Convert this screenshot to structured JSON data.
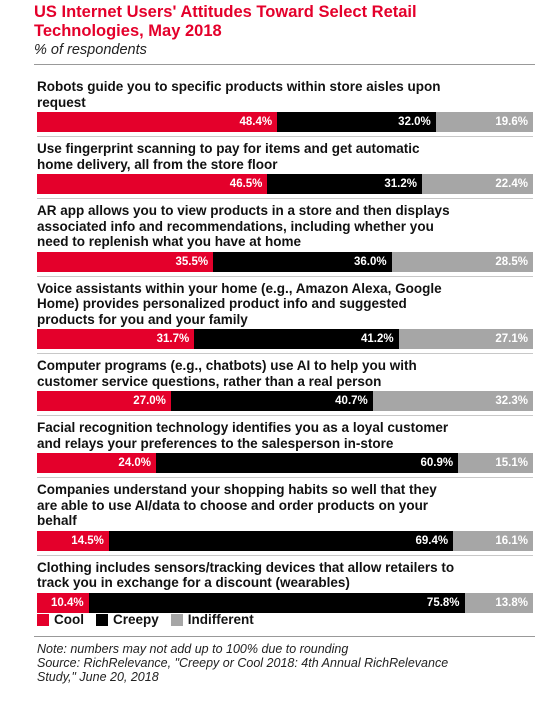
{
  "header": {
    "title_line1": "US Internet Users' Attitudes Toward Select Retail",
    "title_line2": "Technologies, May 2018",
    "subtitle": "% of respondents"
  },
  "legend": {
    "cool": "Cool",
    "creepy": "Creepy",
    "indifferent": "Indifferent"
  },
  "footer": {
    "note": "Note: numbers may not add up to 100% due to rounding",
    "source_line1": "Source: RichRelevance, \"Creepy or Cool 2018: 4th Annual RichRelevance",
    "source_line2": "Study,\" June 20, 2018"
  },
  "colors": {
    "cool": "#e4002b",
    "creepy": "#000000",
    "indifferent": "#a6a6a6"
  },
  "chart_data": {
    "type": "bar",
    "stacked": true,
    "orientation": "horizontal",
    "title": "US Internet Users' Attitudes Toward Select Retail Technologies, May 2018",
    "subtitle": "% of respondents",
    "categories": [
      [
        "Robots guide you to specific products within store aisles upon",
        "request"
      ],
      [
        "Use fingerprint scanning to pay for items and get automatic",
        "home delivery, all from the store floor"
      ],
      [
        "AR app allows you to view products in a store and then displays",
        "associated info and recommendations, including whether you",
        "need to replenish what you have at home"
      ],
      [
        "Voice assistants within your home (e.g., Amazon Alexa, Google",
        "Home) provides personalized product info and suggested",
        "products for you and your family"
      ],
      [
        "Computer programs (e.g., chatbots) use AI to help you with",
        "customer service questions, rather than a real person"
      ],
      [
        "Facial recognition technology identifies you as a loyal customer",
        "and relays your preferences to the salesperson in-store"
      ],
      [
        "Companies understand your shopping habits so well that they",
        "are able to use AI/data to choose and order products on your",
        "behalf"
      ],
      [
        "Clothing includes sensors/tracking devices that allow retailers to",
        "track you in exchange for a discount (wearables)"
      ]
    ],
    "series": [
      {
        "name": "Cool",
        "values": [
          48.4,
          46.5,
          35.5,
          31.7,
          27.0,
          24.0,
          14.5,
          10.4
        ],
        "labels": [
          "48.4%",
          "46.5%",
          "35.5%",
          "31.7%",
          "27.0%",
          "24.0%",
          "14.5%",
          "10.4%"
        ]
      },
      {
        "name": "Creepy",
        "values": [
          32.0,
          31.2,
          36.0,
          41.2,
          40.7,
          60.9,
          69.4,
          75.8
        ],
        "labels": [
          "32.0%",
          "31.2%",
          "36.0%",
          "41.2%",
          "40.7%",
          "60.9%",
          "69.4%",
          "75.8%"
        ]
      },
      {
        "name": "Indifferent",
        "values": [
          19.6,
          22.4,
          28.5,
          27.1,
          32.3,
          15.1,
          16.1,
          13.8
        ],
        "labels": [
          "19.6%",
          "22.4%",
          "28.5%",
          "27.1%",
          "32.3%",
          "15.1%",
          "16.1%",
          "13.8%"
        ]
      }
    ],
    "legend_position": "bottom-left",
    "xlim": [
      0,
      100
    ]
  }
}
